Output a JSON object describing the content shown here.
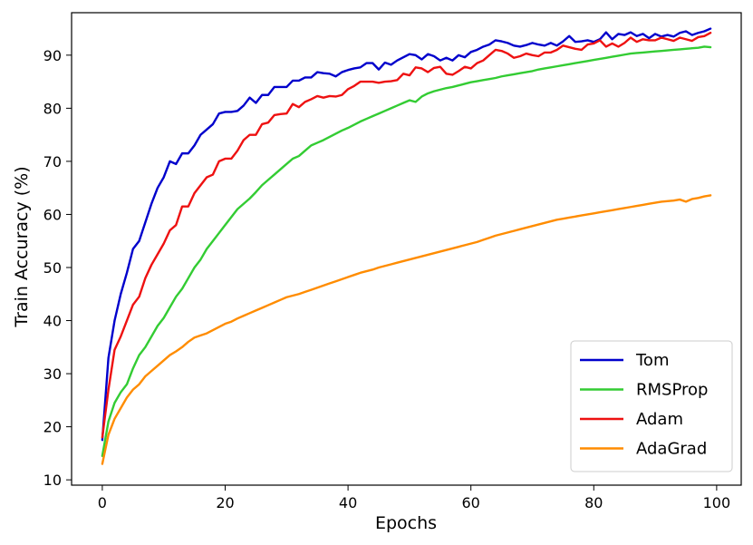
{
  "chart_data": {
    "type": "line",
    "title": "",
    "xlabel": "Epochs",
    "ylabel": "Train Accuracy (%)",
    "xlim": [
      -5,
      104
    ],
    "ylim": [
      9,
      98
    ],
    "xticks": [
      0,
      20,
      40,
      60,
      80,
      100
    ],
    "yticks": [
      10,
      20,
      30,
      40,
      50,
      60,
      70,
      80,
      90
    ],
    "grid": false,
    "legend_position": "lower-right",
    "x": [
      0,
      1,
      2,
      3,
      4,
      5,
      6,
      7,
      8,
      9,
      10,
      11,
      12,
      13,
      14,
      15,
      16,
      17,
      18,
      19,
      20,
      21,
      22,
      23,
      24,
      25,
      26,
      27,
      28,
      29,
      30,
      31,
      32,
      33,
      34,
      35,
      36,
      37,
      38,
      39,
      40,
      41,
      42,
      43,
      44,
      45,
      46,
      47,
      48,
      49,
      50,
      51,
      52,
      53,
      54,
      55,
      56,
      57,
      58,
      59,
      60,
      61,
      62,
      63,
      64,
      65,
      66,
      67,
      68,
      69,
      70,
      71,
      72,
      73,
      74,
      75,
      76,
      77,
      78,
      79,
      80,
      81,
      82,
      83,
      84,
      85,
      86,
      87,
      88,
      89,
      90,
      91,
      92,
      93,
      94,
      95,
      96,
      97,
      98,
      99
    ],
    "series": [
      {
        "name": "Tom",
        "color": "#0000cc",
        "values": [
          17.5,
          33.0,
          40.0,
          45.0,
          49.0,
          53.5,
          55.0,
          58.5,
          62.0,
          65.0,
          67.0,
          70.0,
          69.5,
          71.5,
          71.5,
          73.0,
          75.0,
          76.0,
          77.0,
          79.0,
          79.3,
          79.3,
          79.5,
          80.5,
          82.0,
          81.0,
          82.5,
          82.5,
          84.0,
          84.0,
          84.0,
          85.2,
          85.2,
          85.8,
          85.8,
          86.8,
          86.6,
          86.5,
          86.0,
          86.8,
          87.2,
          87.5,
          87.7,
          88.5,
          88.5,
          87.3,
          88.6,
          88.2,
          89.0,
          89.6,
          90.2,
          90.0,
          89.2,
          90.2,
          89.8,
          89.0,
          89.5,
          89.0,
          90.0,
          89.6,
          90.6,
          91.0,
          91.6,
          92.0,
          92.8,
          92.6,
          92.3,
          91.8,
          91.6,
          91.9,
          92.3,
          92.0,
          91.8,
          92.3,
          91.8,
          92.6,
          93.6,
          92.5,
          92.6,
          92.8,
          92.5,
          93.0,
          94.3,
          93.0,
          94.0,
          93.8,
          94.3,
          93.6,
          94.0,
          93.2,
          94.0,
          93.5,
          93.8,
          93.5,
          94.2,
          94.5,
          93.8,
          94.2,
          94.5,
          95.0
        ]
      },
      {
        "name": "RMSProp",
        "color": "#33cc33",
        "values": [
          14.5,
          21.0,
          24.5,
          26.5,
          28.0,
          31.0,
          33.5,
          35.0,
          37.0,
          39.0,
          40.5,
          42.5,
          44.5,
          46.0,
          48.0,
          50.0,
          51.5,
          53.5,
          55.0,
          56.5,
          58.0,
          59.5,
          61.0,
          62.0,
          63.0,
          64.2,
          65.5,
          66.5,
          67.5,
          68.5,
          69.5,
          70.5,
          71.0,
          72.0,
          73.0,
          73.5,
          74.0,
          74.6,
          75.2,
          75.8,
          76.3,
          76.9,
          77.5,
          78.0,
          78.5,
          79.0,
          79.5,
          80.0,
          80.5,
          81.0,
          81.5,
          81.2,
          82.2,
          82.8,
          83.2,
          83.5,
          83.8,
          84.0,
          84.3,
          84.6,
          84.9,
          85.1,
          85.3,
          85.5,
          85.7,
          86.0,
          86.2,
          86.4,
          86.6,
          86.8,
          87.0,
          87.3,
          87.5,
          87.7,
          87.9,
          88.1,
          88.3,
          88.5,
          88.7,
          88.9,
          89.1,
          89.3,
          89.5,
          89.7,
          89.9,
          90.1,
          90.3,
          90.4,
          90.5,
          90.6,
          90.7,
          90.8,
          90.9,
          91.0,
          91.1,
          91.2,
          91.3,
          91.4,
          91.6,
          91.5
        ]
      },
      {
        "name": "Adam",
        "color": "#ee1111",
        "values": [
          18.0,
          27.0,
          34.5,
          37.0,
          40.0,
          43.0,
          44.5,
          48.0,
          50.5,
          52.5,
          54.5,
          57.0,
          58.0,
          61.5,
          61.5,
          64.0,
          65.5,
          67.0,
          67.5,
          70.0,
          70.5,
          70.5,
          72.0,
          74.0,
          75.0,
          75.0,
          77.0,
          77.3,
          78.7,
          78.9,
          79.0,
          80.8,
          80.2,
          81.2,
          81.7,
          82.3,
          82.0,
          82.3,
          82.2,
          82.5,
          83.6,
          84.2,
          85.0,
          85.0,
          85.0,
          84.8,
          85.0,
          85.1,
          85.3,
          86.5,
          86.2,
          87.7,
          87.5,
          86.8,
          87.6,
          87.8,
          86.5,
          86.3,
          87.0,
          87.8,
          87.5,
          88.5,
          89.0,
          90.0,
          91.0,
          90.8,
          90.3,
          89.5,
          89.8,
          90.3,
          90.0,
          89.8,
          90.5,
          90.5,
          91.0,
          91.8,
          91.5,
          91.2,
          91.0,
          92.0,
          92.2,
          92.8,
          91.6,
          92.2,
          91.6,
          92.3,
          93.3,
          92.5,
          93.0,
          92.8,
          92.8,
          93.3,
          93.0,
          92.7,
          93.3,
          93.0,
          92.7,
          93.4,
          93.6,
          94.2
        ]
      },
      {
        "name": "AdaGrad",
        "color": "#ff8c00",
        "values": [
          13.0,
          18.5,
          21.5,
          23.5,
          25.5,
          27.0,
          28.0,
          29.5,
          30.5,
          31.5,
          32.5,
          33.5,
          34.2,
          35.0,
          36.0,
          36.8,
          37.2,
          37.6,
          38.2,
          38.8,
          39.4,
          39.8,
          40.4,
          40.9,
          41.4,
          41.9,
          42.4,
          42.9,
          43.4,
          43.9,
          44.4,
          44.7,
          45.0,
          45.4,
          45.8,
          46.2,
          46.6,
          47.0,
          47.4,
          47.8,
          48.2,
          48.6,
          49.0,
          49.3,
          49.6,
          50.0,
          50.3,
          50.6,
          50.9,
          51.2,
          51.5,
          51.8,
          52.1,
          52.4,
          52.7,
          53.0,
          53.3,
          53.6,
          53.9,
          54.2,
          54.5,
          54.8,
          55.2,
          55.6,
          56.0,
          56.3,
          56.6,
          56.9,
          57.2,
          57.5,
          57.8,
          58.1,
          58.4,
          58.7,
          59.0,
          59.2,
          59.4,
          59.6,
          59.8,
          60.0,
          60.2,
          60.4,
          60.6,
          60.8,
          61.0,
          61.2,
          61.4,
          61.6,
          61.8,
          62.0,
          62.2,
          62.4,
          62.5,
          62.6,
          62.8,
          62.4,
          62.9,
          63.1,
          63.4,
          63.6
        ]
      }
    ]
  }
}
